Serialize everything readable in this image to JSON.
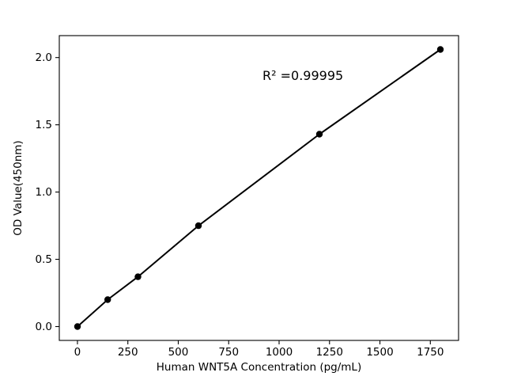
{
  "figure": {
    "background": "#ffffff"
  },
  "chart_data": {
    "type": "scatter",
    "title": "",
    "xlabel": "Human WNT5A Concentration (pg/mL)",
    "ylabel": "OD Value(450nm)",
    "x": [
      0,
      150,
      300,
      600,
      1200,
      1800
    ],
    "y": [
      0.0,
      0.2,
      0.37,
      0.75,
      1.43,
      2.06
    ],
    "xticks": [
      0,
      250,
      500,
      750,
      1000,
      1250,
      1500,
      1750
    ],
    "xtick_labels": [
      "0",
      "250",
      "500",
      "750",
      "1000",
      "1250",
      "1500",
      "1750"
    ],
    "yticks": [
      0.0,
      0.5,
      1.0,
      1.5,
      2.0
    ],
    "ytick_labels": [
      "0.0",
      "0.5",
      "1.0",
      "1.5",
      "2.0"
    ],
    "xlim": [
      -90,
      1890
    ],
    "ylim": [
      -0.103,
      2.163
    ],
    "grid": false,
    "legend": null,
    "line_color": "#000000",
    "marker_color": "#000000",
    "frame_color": "#000000",
    "annotation": {
      "text": "R² =0.99995",
      "fx": 0.61,
      "fy": 0.855
    }
  }
}
